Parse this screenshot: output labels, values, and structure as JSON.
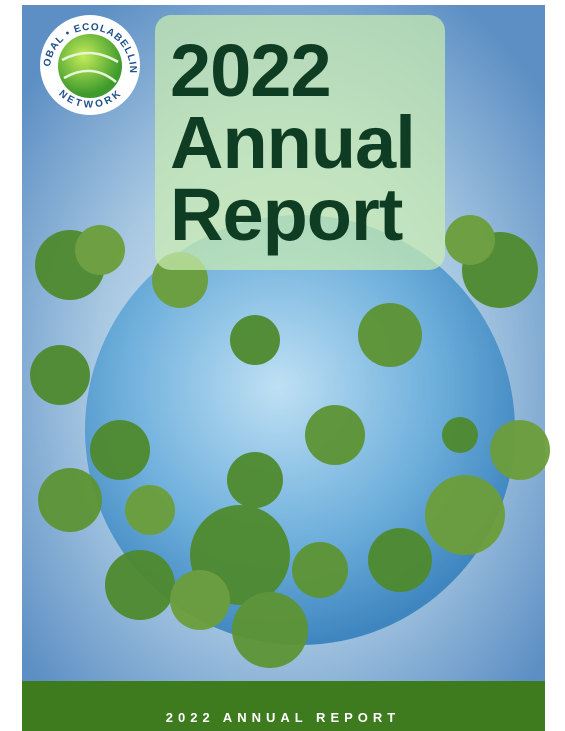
{
  "logo": {
    "text_top": "GLOBAL • ECOLABELLING",
    "text_bottom": "NETWORK"
  },
  "cover": {
    "title_lines": [
      "2022",
      "Annual",
      "Report"
    ]
  },
  "footer": {
    "text": "2022 ANNUAL REPORT"
  }
}
